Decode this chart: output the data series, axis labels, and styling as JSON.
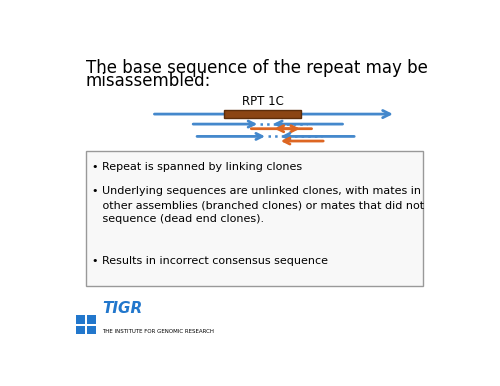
{
  "title_line1": "The base sequence of the repeat may be",
  "title_line2": "misassembled:",
  "title_fontsize": 12,
  "slide_bg": "#ffffff",
  "rpt_label": "RPT 1C",
  "bullet1": "• Repeat is spanned by linking clones",
  "bullet2": "• Underlying sequences are unlinked clones, with mates in\n   other assemblies (branched clones) or mates that did not\n   sequence (dead end clones).",
  "bullet3": "• Results in incorrect consensus sequence",
  "blue_color": "#4488cc",
  "orange_color": "#dd6622",
  "rpt_fill": "#8b4513",
  "rpt_edge": "#5c2d0a",
  "tigr_blue": "#2277cc",
  "box_bg": "#f8f8f8",
  "box_edge": "#999999",
  "bullet_fontsize": 8.0
}
